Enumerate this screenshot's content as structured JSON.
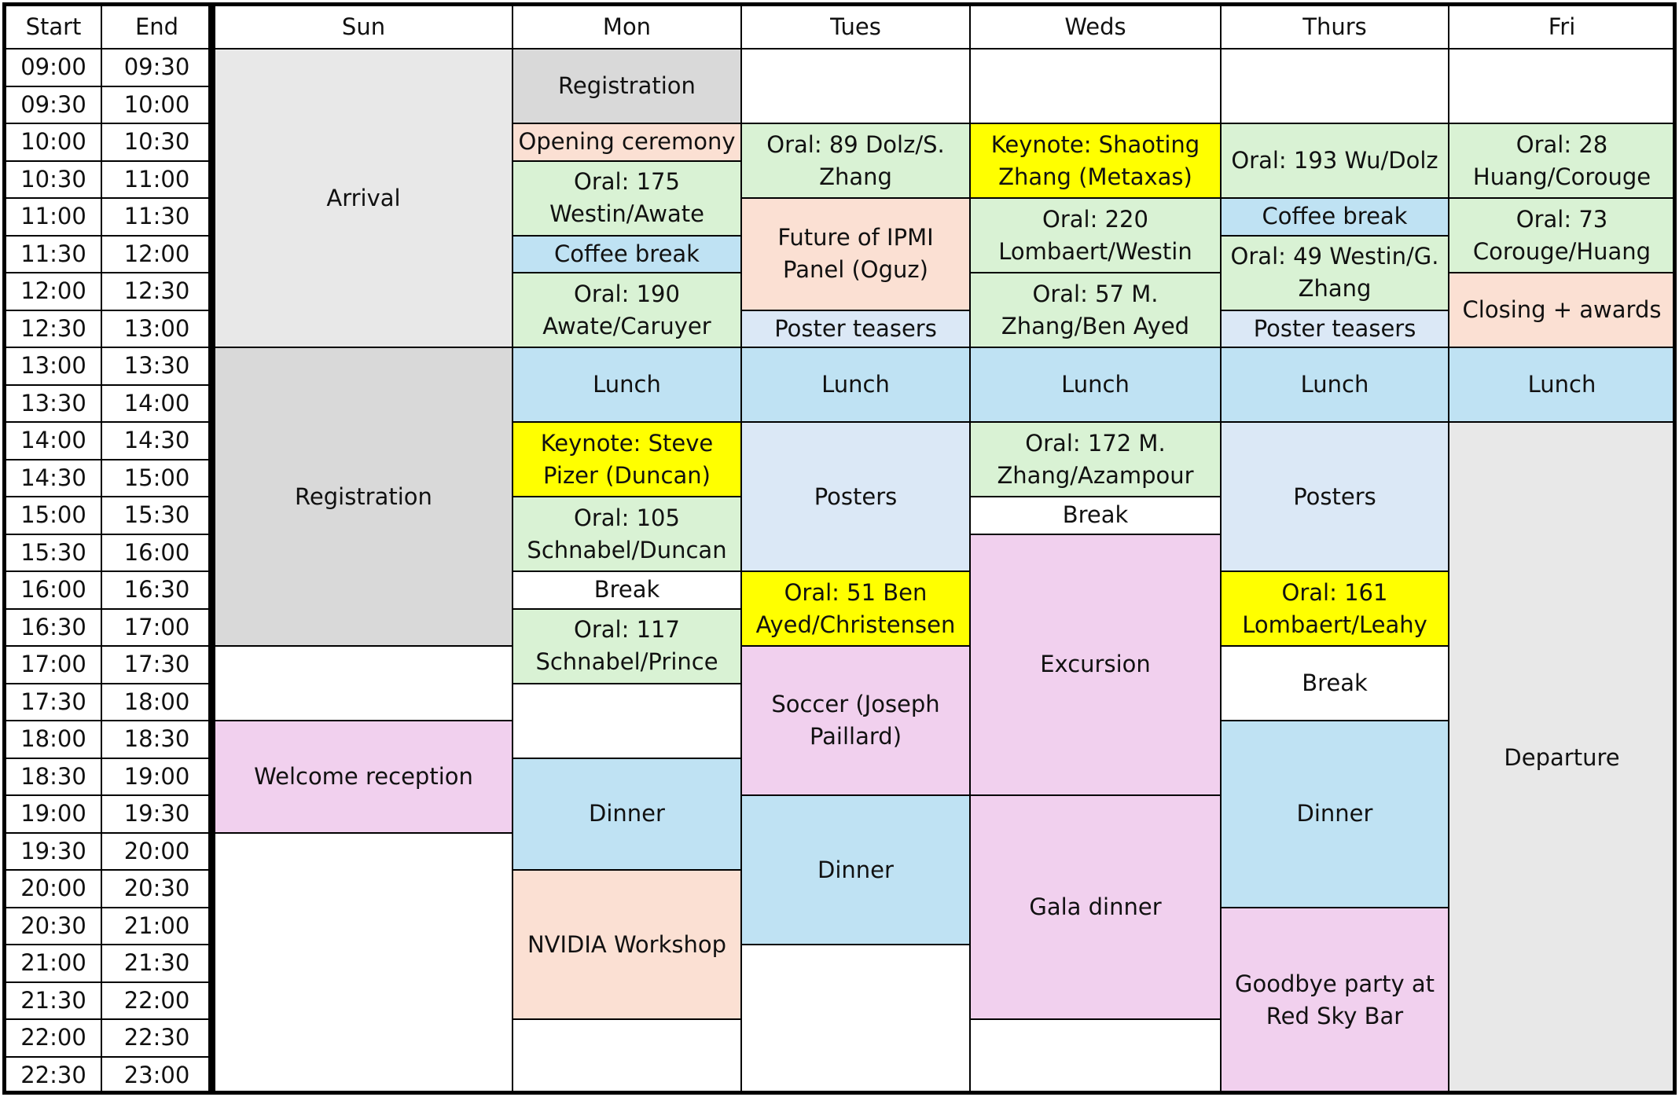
{
  "headers": {
    "start": "Start",
    "end": "End",
    "days": [
      "Sun",
      "Mon",
      "Tues",
      "Weds",
      "Thurs",
      "Fri"
    ]
  },
  "times": [
    [
      "09:00",
      "09:30"
    ],
    [
      "09:30",
      "10:00"
    ],
    [
      "10:00",
      "10:30"
    ],
    [
      "10:30",
      "11:00"
    ],
    [
      "11:00",
      "11:30"
    ],
    [
      "11:30",
      "12:00"
    ],
    [
      "12:00",
      "12:30"
    ],
    [
      "12:30",
      "13:00"
    ],
    [
      "13:00",
      "13:30"
    ],
    [
      "13:30",
      "14:00"
    ],
    [
      "14:00",
      "14:30"
    ],
    [
      "14:30",
      "15:00"
    ],
    [
      "15:00",
      "15:30"
    ],
    [
      "15:30",
      "16:00"
    ],
    [
      "16:00",
      "16:30"
    ],
    [
      "16:30",
      "17:00"
    ],
    [
      "17:00",
      "17:30"
    ],
    [
      "17:30",
      "18:00"
    ],
    [
      "18:00",
      "18:30"
    ],
    [
      "18:30",
      "19:00"
    ],
    [
      "19:00",
      "19:30"
    ],
    [
      "19:30",
      "20:00"
    ],
    [
      "20:00",
      "20:30"
    ],
    [
      "20:30",
      "21:00"
    ],
    [
      "21:00",
      "21:30"
    ],
    [
      "21:30",
      "22:00"
    ],
    [
      "22:00",
      "22:30"
    ],
    [
      "22:30",
      "23:00"
    ]
  ],
  "colors": {
    "white": "#ffffff",
    "light_gray": "#e8e8e8",
    "gray": "#d9d9d9",
    "peach": "#fbe0d3",
    "green": "#d9f2d4",
    "blue": "#bfe2f3",
    "pale_blue": "#dbe8f6",
    "yellow": "#ffff00",
    "pink": "#f1d0ee"
  },
  "events": {
    "sun": [
      {
        "start": "09:00",
        "end": "13:00",
        "label": "Arrival",
        "color": "light_gray"
      },
      {
        "start": "13:00",
        "end": "17:00",
        "label": "Registration",
        "color": "gray"
      },
      {
        "start": "17:00",
        "end": "18:00",
        "label": "",
        "color": "white"
      },
      {
        "start": "18:00",
        "end": "19:30",
        "label": "Welcome reception",
        "color": "pink"
      },
      {
        "start": "19:30",
        "end": "23:00",
        "label": "",
        "color": "white"
      }
    ],
    "mon": [
      {
        "start": "09:00",
        "end": "10:00",
        "label": "Registration",
        "color": "gray"
      },
      {
        "start": "10:00",
        "end": "10:30",
        "label": "Opening ceremony",
        "color": "peach"
      },
      {
        "start": "10:30",
        "end": "11:30",
        "label": "Oral: 175 Westin/Awate",
        "color": "green"
      },
      {
        "start": "11:30",
        "end": "12:00",
        "label": "Coffee break",
        "color": "blue"
      },
      {
        "start": "12:00",
        "end": "13:00",
        "label": "Oral: 190 Awate/Caruyer",
        "color": "green"
      },
      {
        "start": "13:00",
        "end": "14:00",
        "label": "Lunch",
        "color": "blue"
      },
      {
        "start": "14:00",
        "end": "15:00",
        "label": "Keynote: Steve Pizer (Duncan)",
        "color": "yellow"
      },
      {
        "start": "15:00",
        "end": "16:00",
        "label": "Oral: 105 Schnabel/Duncan",
        "color": "green"
      },
      {
        "start": "16:00",
        "end": "16:30",
        "label": "Break",
        "color": "white"
      },
      {
        "start": "16:30",
        "end": "17:30",
        "label": "Oral: 117 Schnabel/Prince",
        "color": "green"
      },
      {
        "start": "17:30",
        "end": "18:30",
        "label": "",
        "color": "white"
      },
      {
        "start": "18:30",
        "end": "20:00",
        "label": "Dinner",
        "color": "blue"
      },
      {
        "start": "20:00",
        "end": "22:00",
        "label": "NVIDIA Workshop",
        "color": "peach"
      },
      {
        "start": "22:00",
        "end": "23:00",
        "label": "",
        "color": "white"
      }
    ],
    "tues": [
      {
        "start": "09:00",
        "end": "10:00",
        "label": "",
        "color": "white"
      },
      {
        "start": "10:00",
        "end": "11:00",
        "label": "Oral: 89 Dolz/S. Zhang",
        "color": "green"
      },
      {
        "start": "11:00",
        "end": "12:30",
        "label": "Future of IPMI Panel (Oguz)",
        "color": "peach"
      },
      {
        "start": "12:30",
        "end": "13:00",
        "label": "Poster teasers",
        "color": "pale_blue"
      },
      {
        "start": "13:00",
        "end": "14:00",
        "label": "Lunch",
        "color": "blue"
      },
      {
        "start": "14:00",
        "end": "16:00",
        "label": "Posters",
        "color": "pale_blue"
      },
      {
        "start": "16:00",
        "end": "17:00",
        "label": "Oral: 51 Ben Ayed/Christensen",
        "color": "yellow"
      },
      {
        "start": "17:00",
        "end": "19:00",
        "label": "Soccer (Joseph Paillard)",
        "color": "pink"
      },
      {
        "start": "19:00",
        "end": "21:00",
        "label": "Dinner",
        "color": "blue"
      },
      {
        "start": "21:00",
        "end": "23:00",
        "label": "",
        "color": "white"
      }
    ],
    "weds": [
      {
        "start": "09:00",
        "end": "10:00",
        "label": "",
        "color": "white"
      },
      {
        "start": "10:00",
        "end": "11:00",
        "label": "Keynote: Shaoting Zhang (Metaxas)",
        "color": "yellow"
      },
      {
        "start": "11:00",
        "end": "12:00",
        "label": "Oral: 220 Lombaert/Westin",
        "color": "green"
      },
      {
        "start": "12:00",
        "end": "13:00",
        "label": "Oral: 57 M. Zhang/Ben Ayed",
        "color": "green"
      },
      {
        "start": "13:00",
        "end": "14:00",
        "label": "Lunch",
        "color": "blue"
      },
      {
        "start": "14:00",
        "end": "15:00",
        "label": "Oral: 172 M. Zhang/Azampour",
        "color": "green"
      },
      {
        "start": "15:00",
        "end": "15:30",
        "label": "Break",
        "color": "white"
      },
      {
        "start": "15:30",
        "end": "19:00",
        "label": "Excursion",
        "color": "pink"
      },
      {
        "start": "19:00",
        "end": "22:00",
        "label": "Gala dinner",
        "color": "pink"
      },
      {
        "start": "22:00",
        "end": "23:00",
        "label": "",
        "color": "white"
      }
    ],
    "thurs": [
      {
        "start": "09:00",
        "end": "10:00",
        "label": "",
        "color": "white"
      },
      {
        "start": "10:00",
        "end": "11:00",
        "label": "Oral: 193 Wu/Dolz",
        "color": "green"
      },
      {
        "start": "11:00",
        "end": "11:30",
        "label": "Coffee break",
        "color": "blue"
      },
      {
        "start": "11:30",
        "end": "12:30",
        "label": "Oral: 49 Westin/G. Zhang",
        "color": "green"
      },
      {
        "start": "12:30",
        "end": "13:00",
        "label": "Poster teasers",
        "color": "pale_blue"
      },
      {
        "start": "13:00",
        "end": "14:00",
        "label": "Lunch",
        "color": "blue"
      },
      {
        "start": "14:00",
        "end": "16:00",
        "label": "Posters",
        "color": "pale_blue"
      },
      {
        "start": "16:00",
        "end": "17:00",
        "label": "Oral: 161 Lombaert/Leahy",
        "color": "yellow"
      },
      {
        "start": "17:00",
        "end": "18:00",
        "label": "Break",
        "color": "white"
      },
      {
        "start": "18:00",
        "end": "20:30",
        "label": "Dinner",
        "color": "blue"
      },
      {
        "start": "20:30",
        "end": "23:00",
        "label": "Goodbye party at Red Sky Bar",
        "color": "pink"
      }
    ],
    "fri": [
      {
        "start": "09:00",
        "end": "10:00",
        "label": "",
        "color": "white"
      },
      {
        "start": "10:00",
        "end": "11:00",
        "label": "Oral: 28 Huang/Corouge",
        "color": "green"
      },
      {
        "start": "11:00",
        "end": "12:00",
        "label": "Oral: 73 Corouge/Huang",
        "color": "green"
      },
      {
        "start": "12:00",
        "end": "13:00",
        "label": "Closing + awards",
        "color": "peach"
      },
      {
        "start": "13:00",
        "end": "14:00",
        "label": "Lunch",
        "color": "blue"
      },
      {
        "start": "14:00",
        "end": "23:00",
        "label": "Departure",
        "color": "light_gray"
      }
    ]
  }
}
